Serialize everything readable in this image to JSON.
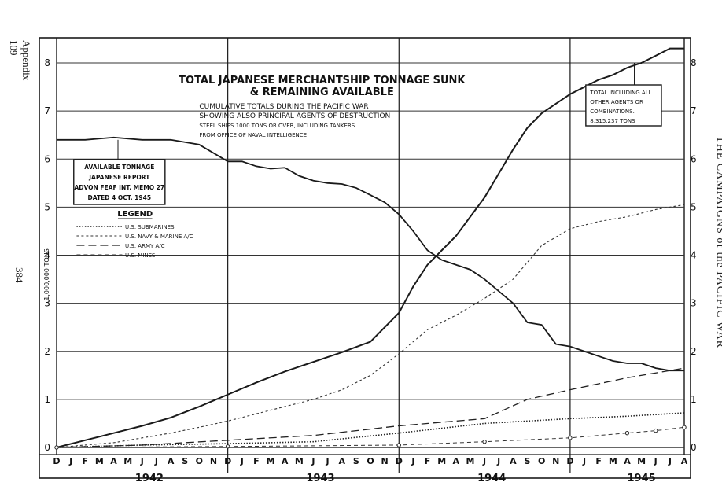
{
  "side_text": {
    "appendix": "Appendix 109",
    "page_number": "384",
    "book_title": "THE CAMPAIGNS of the PACIFIC WAR"
  },
  "chart_data": {
    "type": "line",
    "title_lines": [
      "TOTAL JAPANESE MERCHANTSHIP TONNAGE SUNK",
      "& REMAINING AVAILABLE"
    ],
    "subtitle_lines": [
      "CUMULATIVE TOTALS DURING THE PACIFIC WAR",
      "SHOWING ALSO PRINCIPAL AGENTS OF DESTRUCTION",
      "STEEL SHIPS 1000 TONS OR OVER, INCLUDING TANKERS.",
      "FROM OFFICE OF NAVAL INTELLIGENCE"
    ],
    "ylabel": "1,000,000 TONS",
    "ylim": [
      0,
      8.3
    ],
    "y_ticks": [
      "0",
      "1",
      "2",
      "3",
      "4",
      "5",
      "6",
      "7",
      "8"
    ],
    "x_month_ticks": [
      "D",
      "J",
      "F",
      "M",
      "A",
      "M",
      "J",
      "J",
      "A",
      "S",
      "O",
      "N",
      "D",
      "J",
      "F",
      "M",
      "A",
      "M",
      "J",
      "J",
      "A",
      "S",
      "O",
      "N",
      "D",
      "J",
      "F",
      "M",
      "A",
      "M",
      "J",
      "J",
      "A",
      "S",
      "O",
      "N",
      "D",
      "J",
      "F",
      "M",
      "A",
      "M",
      "J",
      "J",
      "A"
    ],
    "year_labels": [
      "1942",
      "1943",
      "1944",
      "1945"
    ],
    "legend_title": "LEGEND",
    "legend_placement": "left-middle",
    "grid": true,
    "series": [
      {
        "name": "AVAILABLE TONNAGE",
        "x": [
          0,
          2,
          4,
          6,
          8,
          10,
          12,
          13,
          14,
          15,
          16,
          17,
          18,
          19,
          20,
          21,
          22,
          23,
          24,
          25,
          26,
          27,
          28,
          29,
          30,
          31,
          32,
          33,
          34,
          35,
          36,
          37,
          38,
          39,
          40,
          41,
          42,
          43,
          44
        ],
        "y": [
          6.4,
          6.4,
          6.45,
          6.4,
          6.4,
          6.3,
          5.95,
          5.95,
          5.85,
          5.8,
          5.82,
          5.65,
          5.55,
          5.5,
          5.48,
          5.4,
          5.25,
          5.1,
          4.85,
          4.5,
          4.1,
          3.9,
          3.8,
          3.7,
          3.5,
          3.25,
          3.0,
          2.6,
          2.55,
          2.15,
          2.1,
          2.0,
          1.9,
          1.8,
          1.75,
          1.75,
          1.65,
          1.6,
          1.6
        ]
      },
      {
        "name": "TOTAL INCLUDING ALL OTHER AGENTS OR COMBINATIONS",
        "x": [
          0,
          2,
          4,
          6,
          8,
          10,
          12,
          14,
          16,
          18,
          20,
          22,
          24,
          25,
          26,
          27,
          28,
          29,
          30,
          31,
          32,
          33,
          34,
          35,
          36,
          37,
          38,
          39,
          40,
          41,
          42,
          43,
          44
        ],
        "y": [
          0,
          0.15,
          0.3,
          0.45,
          0.62,
          0.85,
          1.1,
          1.35,
          1.58,
          1.78,
          1.98,
          2.2,
          2.8,
          3.35,
          3.8,
          4.1,
          4.4,
          4.8,
          5.2,
          5.7,
          6.2,
          6.65,
          6.95,
          7.15,
          7.35,
          7.5,
          7.65,
          7.75,
          7.9,
          8.0,
          8.15,
          8.3,
          8.3
        ]
      },
      {
        "name": "U.S. NAVY & MARINE A/C",
        "x": [
          0,
          2,
          4,
          6,
          8,
          10,
          12,
          14,
          16,
          18,
          20,
          22,
          24,
          26,
          28,
          30,
          32,
          34,
          36,
          38,
          40,
          42,
          44
        ],
        "y": [
          0,
          0.05,
          0.1,
          0.2,
          0.3,
          0.42,
          0.55,
          0.7,
          0.85,
          1.0,
          1.2,
          1.5,
          1.95,
          2.45,
          2.75,
          3.1,
          3.5,
          4.2,
          4.55,
          4.7,
          4.8,
          4.95,
          5.05
        ]
      },
      {
        "name": "U.S. ARMY A/C",
        "x": [
          0,
          6,
          12,
          18,
          24,
          30,
          33,
          36,
          40,
          44
        ],
        "y": [
          0,
          0.05,
          0.15,
          0.25,
          0.45,
          0.6,
          1.0,
          1.2,
          1.45,
          1.65
        ]
      },
      {
        "name": "U.S. SUBMARINES",
        "x": [
          0,
          6,
          12,
          18,
          24,
          30,
          36,
          40,
          44
        ],
        "y": [
          0,
          0.05,
          0.08,
          0.12,
          0.3,
          0.5,
          0.6,
          0.65,
          0.72
        ]
      },
      {
        "name": "U.S. MINES",
        "x": [
          0,
          12,
          24,
          30,
          36,
          40,
          42,
          44
        ],
        "y": [
          0,
          0.02,
          0.05,
          0.12,
          0.2,
          0.3,
          0.35,
          0.42
        ]
      }
    ],
    "annotations": [
      {
        "lines": [
          "AVAILABLE TONNAGE",
          "JAPANESE REPORT",
          "ADVON FEAF INT. MEMO 27",
          "DATED 4 OCT. 1945"
        ]
      },
      {
        "lines": [
          "TOTAL INCLUDING ALL",
          "OTHER AGENTS OR",
          "COMBINATIONS.",
          "8,315,237 TONS"
        ]
      }
    ]
  }
}
